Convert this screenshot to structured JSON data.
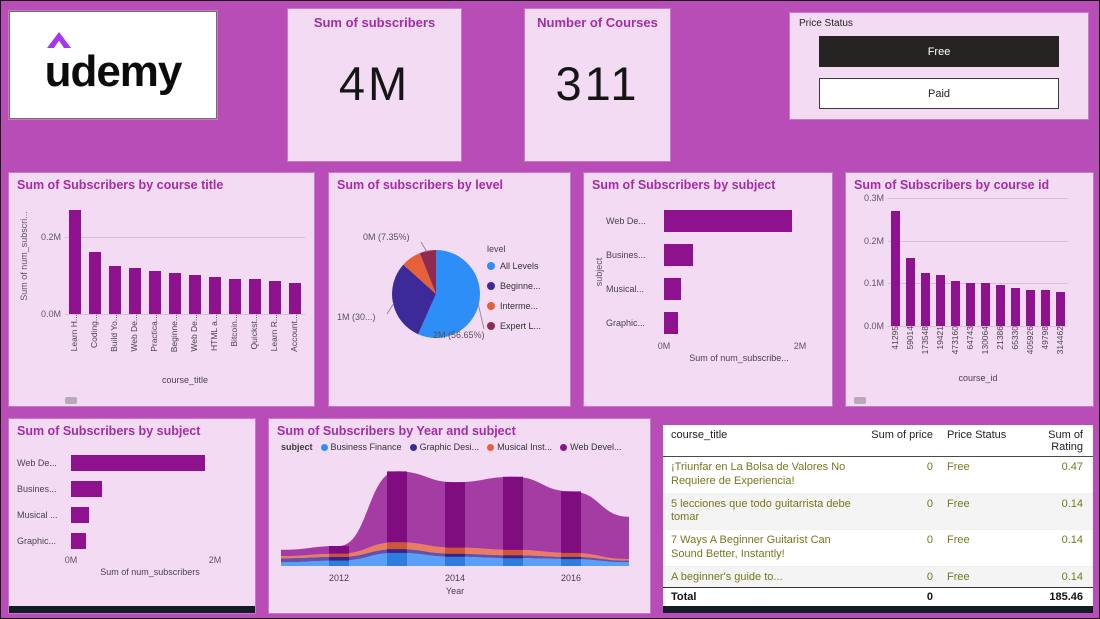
{
  "theme": {
    "background": "#b84db8",
    "card_background": "#f3dcf3",
    "title_color": "#a62ba6",
    "bar_color": "#8e118e",
    "logo_caret_color": "#a435f0",
    "table_text_color": "#77771e",
    "selected_slicer_bg": "#252423"
  },
  "logo": {
    "text": "udemy"
  },
  "kpis": [
    {
      "title": "Sum of subscribers",
      "value": "4M"
    },
    {
      "title": "Number of Courses",
      "value": "311"
    }
  ],
  "slicer": {
    "title": "Price Status",
    "options": [
      {
        "label": "Free",
        "selected": true
      },
      {
        "label": "Paid",
        "selected": false
      }
    ]
  },
  "charts": {
    "course_title": {
      "type": "bar",
      "title": "Sum of Subscribers by course title",
      "ylabel": "Sum of num_subscri...",
      "xlabel": "course_title",
      "ymax_M": 0.3,
      "yticks": [
        {
          "v": 0,
          "label": "0.0M"
        },
        {
          "v": 0.2,
          "label": "0.2M"
        }
      ],
      "categories": [
        "Learn H...",
        "Coding...",
        "Build Yo...",
        "Web De...",
        "Practica...",
        "Beginne...",
        "Web De...",
        "HTML a...",
        "Bitcoin...",
        "Quickst...",
        "Learn R...",
        "Account..."
      ],
      "values_M": [
        0.27,
        0.16,
        0.125,
        0.12,
        0.11,
        0.105,
        0.1,
        0.095,
        0.09,
        0.09,
        0.085,
        0.08
      ]
    },
    "level": {
      "type": "pie",
      "title": "Sum of subscribers by level",
      "legend_title": "level",
      "slices": [
        {
          "label": "All Levels",
          "pct": 56.65,
          "callout": "2M (56.65%)",
          "color": "#2e8ef7"
        },
        {
          "label": "Beginne...",
          "pct": 30.0,
          "callout": "1M (30...)",
          "color": "#3b2a97"
        },
        {
          "label": "Interme...",
          "pct": 7.35,
          "callout": "0M (7.35%)",
          "color": "#e6613a"
        },
        {
          "label": "Expert L...",
          "pct": 6.0,
          "callout": "",
          "color": "#8f2a52"
        }
      ]
    },
    "subject_top": {
      "type": "bar-horizontal",
      "title": "Sum of Subscribers by subject",
      "ylabel": "subject",
      "xlabel": "Sum of num_subscribe...",
      "xmax_M": 2.2,
      "xticks": [
        {
          "v": 0,
          "label": "0M"
        },
        {
          "v": 2,
          "label": "2M"
        }
      ],
      "categories": [
        "Web De...",
        "Busines...",
        "Musical...",
        "Graphic..."
      ],
      "values_M": [
        1.87,
        0.43,
        0.25,
        0.21
      ]
    },
    "course_id": {
      "type": "bar",
      "title": "Sum of Subscribers by course id",
      "xlabel": "course_id",
      "ymax_M": 0.3,
      "yticks": [
        {
          "v": 0,
          "label": "0.0M"
        },
        {
          "v": 0.1,
          "label": "0.1M"
        },
        {
          "v": 0.2,
          "label": "0.2M"
        },
        {
          "v": 0.3,
          "label": "0.3M"
        }
      ],
      "categories": [
        "41295",
        "59014",
        "173548",
        "19421",
        "473160",
        "64743",
        "130064",
        "21386",
        "65330",
        "405926",
        "49798",
        "314462"
      ],
      "values_M": [
        0.27,
        0.16,
        0.125,
        0.12,
        0.105,
        0.1,
        0.1,
        0.095,
        0.09,
        0.085,
        0.085,
        0.08
      ]
    },
    "subject_bottom": {
      "type": "bar-horizontal",
      "title": "Sum of Subscribers by subject",
      "xlabel": "Sum of num_subscribers",
      "xmax_M": 2.2,
      "xticks": [
        {
          "v": 0,
          "label": "0M"
        },
        {
          "v": 2,
          "label": "2M"
        }
      ],
      "categories": [
        "Web De...",
        "Busines...",
        "Musical ...",
        "Graphic..."
      ],
      "values_M": [
        1.87,
        0.43,
        0.25,
        0.21
      ]
    },
    "year_subject": {
      "type": "area",
      "title": "Sum of Subscribers by Year and subject",
      "legend_title": "subject",
      "xlabel": "Year",
      "years": [
        2011,
        2012,
        2013,
        2014,
        2015,
        2016,
        2017
      ],
      "xtick_years": [
        2012,
        2014,
        2016
      ],
      "series": [
        {
          "name": "Business Finance",
          "color": "#2e8ef7",
          "values_M": [
            0.05,
            0.07,
            0.17,
            0.12,
            0.1,
            0.09,
            0.05
          ]
        },
        {
          "name": "Graphic Desi...",
          "color": "#3b2a97",
          "values_M": [
            0.05,
            0.05,
            0.05,
            0.04,
            0.04,
            0.03,
            0.02
          ]
        },
        {
          "name": "Musical Inst...",
          "color": "#e6613a",
          "values_M": [
            0.03,
            0.04,
            0.09,
            0.08,
            0.07,
            0.05,
            0.02
          ]
        },
        {
          "name": "Web Devel...",
          "color": "#8d0f8d",
          "values_M": [
            0.08,
            0.1,
            0.92,
            0.85,
            0.95,
            0.8,
            0.55
          ]
        }
      ]
    }
  },
  "table": {
    "columns": [
      "course_title",
      "Sum of price",
      "Price Status",
      "Sum of Rating"
    ],
    "rows": [
      {
        "course_title": "¡Triunfar en La Bolsa de Valores No Requiere de Experiencia!",
        "sum_of_price": "0",
        "price_status": "Free",
        "sum_of_rating": "0.47"
      },
      {
        "course_title": "5 lecciones que todo guitarrista debe tomar",
        "sum_of_price": "0",
        "price_status": "Free",
        "sum_of_rating": "0.14"
      },
      {
        "course_title": "7 Ways A Beginner Guitarist Can Sound Better, Instantly!",
        "sum_of_price": "0",
        "price_status": "Free",
        "sum_of_rating": "0.14"
      },
      {
        "course_title": "A beginner's guide to...",
        "sum_of_price": "0",
        "price_status": "Free",
        "sum_of_rating": "0.14"
      }
    ],
    "total": {
      "label": "Total",
      "sum_of_price": "0",
      "sum_of_rating": "185.46"
    }
  }
}
